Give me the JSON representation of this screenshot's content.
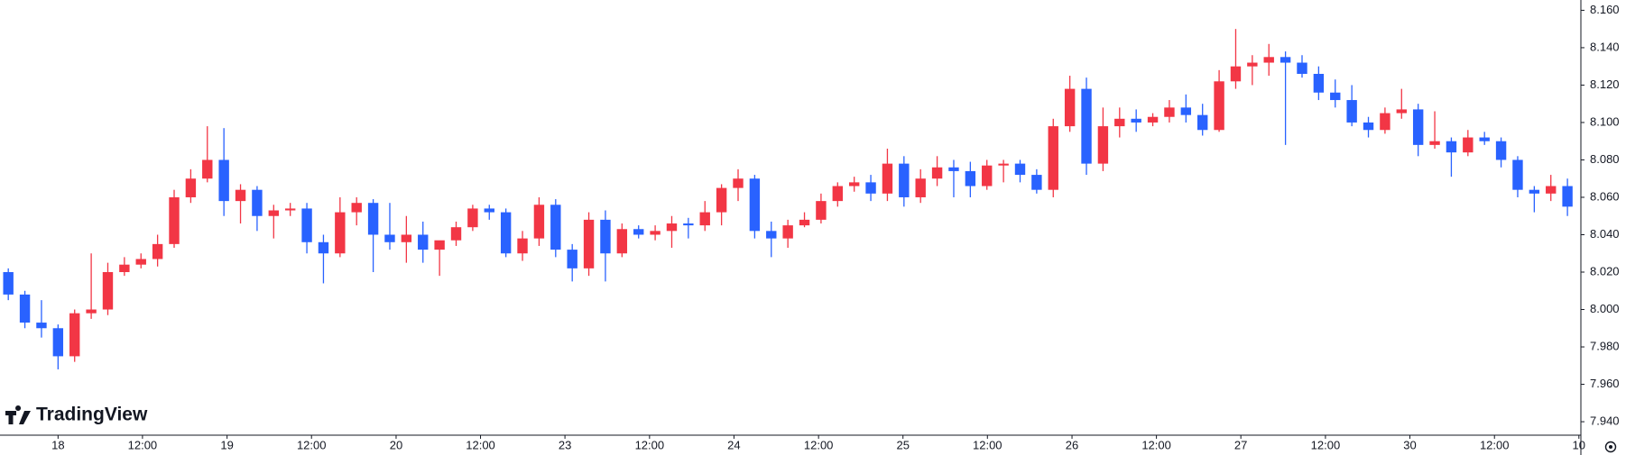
{
  "chart_data": {
    "type": "candlestick",
    "logo": "TradingView",
    "up_color": "#f23645",
    "down_color": "#2962ff",
    "grid": false,
    "x": [
      0,
      1,
      2,
      3,
      4,
      5,
      6,
      7,
      8,
      9,
      10,
      11,
      12,
      13,
      14,
      15,
      16,
      17,
      18,
      19,
      20,
      21,
      22,
      23,
      24,
      25,
      26,
      27,
      28,
      29,
      30,
      31,
      32,
      33,
      34,
      35,
      36,
      37,
      38,
      39,
      40,
      41,
      42,
      43,
      44,
      45,
      46,
      47,
      48,
      49,
      50,
      51,
      52,
      53,
      54,
      55,
      56,
      57,
      58,
      59,
      60,
      61,
      62,
      63,
      64,
      65,
      66,
      67,
      68,
      69,
      70,
      71,
      72,
      73,
      74,
      75,
      76,
      77,
      78,
      79,
      80,
      81,
      82,
      83,
      84,
      85,
      86,
      87,
      88,
      89,
      90,
      91,
      92,
      93,
      94
    ],
    "open": [
      8.02,
      8.008,
      7.993,
      7.99,
      7.975,
      7.998,
      8.0,
      8.02,
      8.024,
      8.027,
      8.035,
      8.06,
      8.07,
      8.08,
      8.058,
      8.064,
      8.05,
      8.053,
      8.054,
      8.036,
      8.03,
      8.052,
      8.057,
      8.04,
      8.036,
      8.04,
      8.032,
      8.037,
      8.044,
      8.054,
      8.052,
      8.03,
      8.038,
      8.056,
      8.032,
      8.022,
      8.048,
      8.03,
      8.043,
      8.04,
      8.042,
      8.046,
      8.045,
      8.052,
      8.065,
      8.07,
      8.042,
      8.038,
      8.045,
      8.048,
      8.058,
      8.066,
      8.068,
      8.062,
      8.078,
      8.06,
      8.07,
      8.076,
      8.074,
      8.066,
      8.077,
      8.078,
      8.072,
      8.064,
      8.098,
      8.118,
      8.078,
      8.098,
      8.102,
      8.1,
      8.103,
      8.108,
      8.104,
      8.096,
      8.122,
      8.13,
      8.132,
      8.135,
      8.132,
      8.126,
      8.116,
      8.112,
      8.1,
      8.096,
      8.105,
      8.107,
      8.088,
      8.09,
      8.084,
      8.092,
      8.09,
      8.08,
      8.064,
      8.062,
      8.066
    ],
    "high": [
      8.022,
      8.01,
      8.005,
      7.992,
      8.0,
      8.03,
      8.025,
      8.028,
      8.03,
      8.04,
      8.064,
      8.075,
      8.098,
      8.097,
      8.067,
      8.066,
      8.056,
      8.057,
      8.057,
      8.04,
      8.06,
      8.06,
      8.059,
      8.057,
      8.05,
      8.047,
      8.036,
      8.047,
      8.056,
      8.056,
      8.054,
      8.042,
      8.06,
      8.059,
      8.035,
      8.052,
      8.053,
      8.046,
      8.045,
      8.045,
      8.05,
      8.049,
      8.058,
      8.067,
      8.075,
      8.072,
      8.047,
      8.048,
      8.052,
      8.062,
      8.068,
      8.071,
      8.072,
      8.086,
      8.082,
      8.075,
      8.082,
      8.08,
      8.079,
      8.08,
      8.08,
      8.08,
      8.075,
      8.102,
      8.125,
      8.124,
      8.108,
      8.108,
      8.107,
      8.105,
      8.112,
      8.115,
      8.11,
      8.128,
      8.15,
      8.136,
      8.142,
      8.138,
      8.136,
      8.13,
      8.123,
      8.12,
      8.103,
      8.108,
      8.118,
      8.11,
      8.106,
      8.092,
      8.096,
      8.095,
      8.092,
      8.082,
      8.066,
      8.072,
      8.07
    ],
    "low": [
      8.005,
      7.99,
      7.985,
      7.968,
      7.972,
      7.995,
      7.997,
      8.018,
      8.022,
      8.023,
      8.033,
      8.057,
      8.068,
      8.05,
      8.046,
      8.042,
      8.038,
      8.05,
      8.03,
      8.014,
      8.028,
      8.045,
      8.02,
      8.032,
      8.025,
      8.025,
      8.018,
      8.034,
      8.042,
      8.048,
      8.028,
      8.026,
      8.034,
      8.028,
      8.015,
      8.018,
      8.015,
      8.028,
      8.038,
      8.037,
      8.033,
      8.038,
      8.042,
      8.045,
      8.058,
      8.038,
      8.028,
      8.033,
      8.044,
      8.046,
      8.055,
      8.063,
      8.058,
      8.058,
      8.055,
      8.057,
      8.066,
      8.06,
      8.06,
      8.064,
      8.068,
      8.068,
      8.062,
      8.06,
      8.095,
      8.072,
      8.074,
      8.092,
      8.095,
      8.098,
      8.1,
      8.1,
      8.093,
      8.095,
      8.118,
      8.12,
      8.125,
      8.088,
      8.124,
      8.112,
      8.108,
      8.098,
      8.092,
      8.094,
      8.102,
      8.082,
      8.086,
      8.071,
      8.082,
      8.088,
      8.076,
      8.06,
      8.052,
      8.058,
      8.05
    ],
    "close": [
      8.008,
      7.993,
      7.99,
      7.975,
      7.998,
      8.0,
      8.02,
      8.024,
      8.027,
      8.035,
      8.06,
      8.07,
      8.08,
      8.058,
      8.064,
      8.05,
      8.053,
      8.054,
      8.036,
      8.03,
      8.052,
      8.057,
      8.04,
      8.036,
      8.04,
      8.032,
      8.037,
      8.044,
      8.054,
      8.052,
      8.03,
      8.038,
      8.056,
      8.032,
      8.022,
      8.048,
      8.03,
      8.043,
      8.04,
      8.042,
      8.046,
      8.045,
      8.052,
      8.065,
      8.07,
      8.042,
      8.038,
      8.045,
      8.048,
      8.058,
      8.066,
      8.068,
      8.062,
      8.078,
      8.06,
      8.07,
      8.076,
      8.074,
      8.066,
      8.077,
      8.078,
      8.072,
      8.064,
      8.098,
      8.118,
      8.078,
      8.098,
      8.102,
      8.1,
      8.103,
      8.108,
      8.104,
      8.096,
      8.122,
      8.13,
      8.132,
      8.135,
      8.132,
      8.126,
      8.116,
      8.112,
      8.1,
      8.096,
      8.105,
      8.107,
      8.088,
      8.09,
      8.084,
      8.092,
      8.09,
      8.08,
      8.064,
      8.062,
      8.066,
      8.055
    ],
    "xlim": [
      -0.5,
      94.81
    ],
    "ylim": [
      7.9328,
      8.1655
    ],
    "xticks": [
      {
        "value": 3,
        "label": "18"
      },
      {
        "value": 8.09,
        "label": "12:00"
      },
      {
        "value": 13.19,
        "label": "19"
      },
      {
        "value": 18.28,
        "label": "12:00"
      },
      {
        "value": 23.38,
        "label": "20"
      },
      {
        "value": 28.47,
        "label": "12:00"
      },
      {
        "value": 33.56,
        "label": "23"
      },
      {
        "value": 38.66,
        "label": "12:00"
      },
      {
        "value": 43.75,
        "label": "24"
      },
      {
        "value": 48.85,
        "label": "12:00"
      },
      {
        "value": 53.94,
        "label": "25"
      },
      {
        "value": 59.03,
        "label": "12:00"
      },
      {
        "value": 64.13,
        "label": "26"
      },
      {
        "value": 69.22,
        "label": "12:00"
      },
      {
        "value": 74.31,
        "label": "27"
      },
      {
        "value": 79.41,
        "label": "12:00"
      },
      {
        "value": 84.5,
        "label": "30"
      },
      {
        "value": 89.6,
        "label": "12:00"
      },
      {
        "value": 94.69,
        "label": "10"
      }
    ],
    "yticks": [
      {
        "value": 8.16,
        "label": "8.160"
      },
      {
        "value": 8.14,
        "label": "8.140"
      },
      {
        "value": 8.12,
        "label": "8.120"
      },
      {
        "value": 8.1,
        "label": "8.100"
      },
      {
        "value": 8.08,
        "label": "8.080"
      },
      {
        "value": 8.06,
        "label": "8.060"
      },
      {
        "value": 8.04,
        "label": "8.040"
      },
      {
        "value": 8.02,
        "label": "8.020"
      },
      {
        "value": 8.0,
        "label": "8.000"
      },
      {
        "value": 7.98,
        "label": "7.980"
      },
      {
        "value": 7.96,
        "label": "7.960"
      },
      {
        "value": 7.94,
        "label": "7.940"
      }
    ]
  }
}
